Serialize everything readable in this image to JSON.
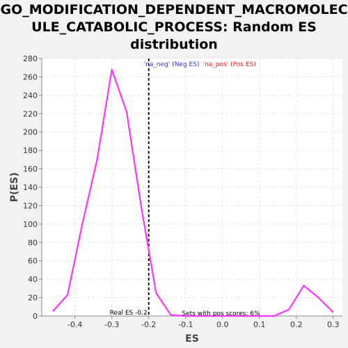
{
  "chart_data": {
    "type": "line",
    "title_lines": [
      "GO_MODIFICATION_DEPENDENT_MACROMOLEC",
      "ULE_CATABOLIC_PROCESS: Random ES",
      "distribution"
    ],
    "xlabel": "ES",
    "ylabel": "P(ES)",
    "xlim": [
      -0.49,
      0.325
    ],
    "ylim": [
      0,
      280
    ],
    "x_ticks": [
      -0.4,
      -0.3,
      -0.2,
      -0.1,
      0.0,
      0.1,
      0.2,
      0.3
    ],
    "x_tick_labels": [
      "-0.4",
      "-0.3",
      "-0.2",
      "-0.1",
      "0.0",
      "0.1",
      "0.2",
      "0.3"
    ],
    "y_ticks": [
      0,
      20,
      40,
      60,
      80,
      100,
      120,
      140,
      160,
      180,
      200,
      220,
      240,
      260,
      280
    ],
    "y_tick_labels": [
      "0",
      "20",
      "40",
      "60",
      "80",
      "100",
      "120",
      "140",
      "160",
      "180",
      "200",
      "220",
      "240",
      "260",
      "280"
    ],
    "grid": true,
    "series": [
      {
        "color": "#ff33ff",
        "x": [
          -0.46,
          -0.42,
          -0.38,
          -0.34,
          -0.3,
          -0.26,
          -0.22,
          -0.18,
          -0.14,
          -0.1,
          -0.06,
          -0.02,
          0.02,
          0.06,
          0.1,
          0.14,
          0.18,
          0.22,
          0.26,
          0.3
        ],
        "y": [
          5,
          23,
          100,
          170,
          268,
          222,
          118,
          25,
          1,
          0,
          0,
          0,
          0,
          0,
          0,
          0,
          7,
          33,
          20,
          4
        ]
      }
    ],
    "real_es": {
      "x": -0.2,
      "label": "Real ES -0.2"
    },
    "pos_scores_label": "Sets with pos scores: 6%",
    "legend": {
      "neg_text": "'na_neg' (Neg ES)",
      "neg_color": "#3333cc",
      "pos_text": "'na_pos' (Pos ES)",
      "pos_color": "#dd2222"
    }
  }
}
